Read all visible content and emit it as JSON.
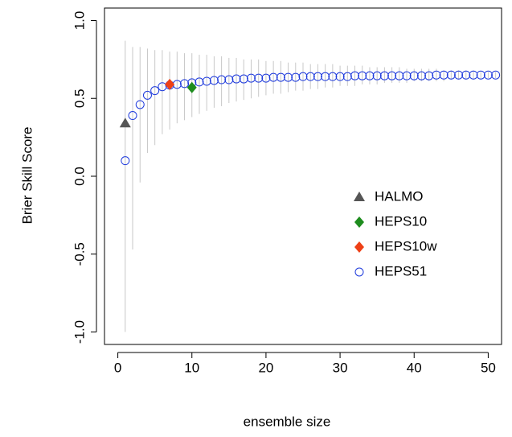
{
  "chart_data": {
    "type": "scatter",
    "x_label": "ensemble size",
    "y_label": "Brier Skill Score",
    "xlim": [
      -1.8,
      51.8
    ],
    "ylim": [
      -1.08,
      1.08
    ],
    "xticks": [
      0,
      10,
      20,
      30,
      40,
      50
    ],
    "yticks": [
      {
        "value": -1,
        "label": "-1.0"
      },
      -0.5,
      {
        "value": 0,
        "label": "0.0"
      },
      0.5,
      {
        "value": 1,
        "label": "1.0"
      }
    ],
    "legend": "center-right",
    "series": [
      {
        "name": "HALMO",
        "color": "#555555",
        "marker": "triangle",
        "x": [
          1
        ],
        "values": [
          0.34
        ]
      },
      {
        "name": "HEPS10",
        "color": "#1e8c1e",
        "marker": "diamond",
        "x": [
          10
        ],
        "values": [
          0.57
        ]
      },
      {
        "name": "HEPS10w",
        "color": "#ee4016",
        "marker": "diamond",
        "x": [
          7
        ],
        "values": [
          0.59
        ]
      },
      {
        "name": "HEPS51",
        "color": "#1f3bdc",
        "marker": "circle",
        "range_color": "#c8c8c8",
        "x": [
          1,
          2,
          3,
          4,
          5,
          6,
          7,
          8,
          9,
          10,
          11,
          12,
          13,
          14,
          15,
          16,
          17,
          18,
          19,
          20,
          21,
          22,
          23,
          24,
          25,
          26,
          27,
          28,
          29,
          30,
          31,
          32,
          33,
          34,
          35,
          36,
          37,
          38,
          39,
          40,
          41,
          42,
          43,
          44,
          45,
          46,
          47,
          48,
          49,
          50,
          51
        ],
        "values": [
          0.1,
          0.39,
          0.46,
          0.52,
          0.55,
          0.575,
          0.585,
          0.59,
          0.595,
          0.6,
          0.605,
          0.61,
          0.615,
          0.62,
          0.62,
          0.625,
          0.625,
          0.63,
          0.63,
          0.63,
          0.635,
          0.635,
          0.635,
          0.635,
          0.64,
          0.64,
          0.64,
          0.64,
          0.64,
          0.64,
          0.64,
          0.645,
          0.645,
          0.645,
          0.645,
          0.645,
          0.645,
          0.645,
          0.645,
          0.645,
          0.645,
          0.645,
          0.65,
          0.65,
          0.65,
          0.65,
          0.65,
          0.65,
          0.65,
          0.65,
          0.65
        ],
        "lower": [
          -1.0,
          -0.47,
          -0.04,
          0.15,
          0.2,
          0.27,
          0.3,
          0.34,
          0.36,
          0.38,
          0.4,
          0.42,
          0.44,
          0.45,
          0.47,
          0.48,
          0.49,
          0.5,
          0.51,
          0.52,
          0.53,
          0.53,
          0.54,
          0.55,
          0.55,
          0.56,
          0.56,
          0.57,
          0.57,
          0.58,
          0.58,
          0.58,
          0.59,
          0.59,
          0.59,
          0.6,
          0.6,
          0.6,
          0.6,
          0.61,
          0.61,
          0.61,
          0.61,
          0.61,
          0.62,
          0.62,
          0.62,
          0.62,
          0.62,
          0.63,
          0.63
        ],
        "upper": [
          0.87,
          0.83,
          0.83,
          0.82,
          0.81,
          0.81,
          0.8,
          0.8,
          0.79,
          0.79,
          0.78,
          0.78,
          0.77,
          0.77,
          0.76,
          0.76,
          0.75,
          0.75,
          0.75,
          0.74,
          0.74,
          0.74,
          0.73,
          0.73,
          0.73,
          0.72,
          0.72,
          0.72,
          0.72,
          0.71,
          0.71,
          0.71,
          0.71,
          0.7,
          0.7,
          0.7,
          0.7,
          0.7,
          0.69,
          0.69,
          0.69,
          0.69,
          0.69,
          0.68,
          0.68,
          0.68,
          0.68,
          0.68,
          0.67,
          0.67,
          0.67
        ]
      }
    ]
  }
}
